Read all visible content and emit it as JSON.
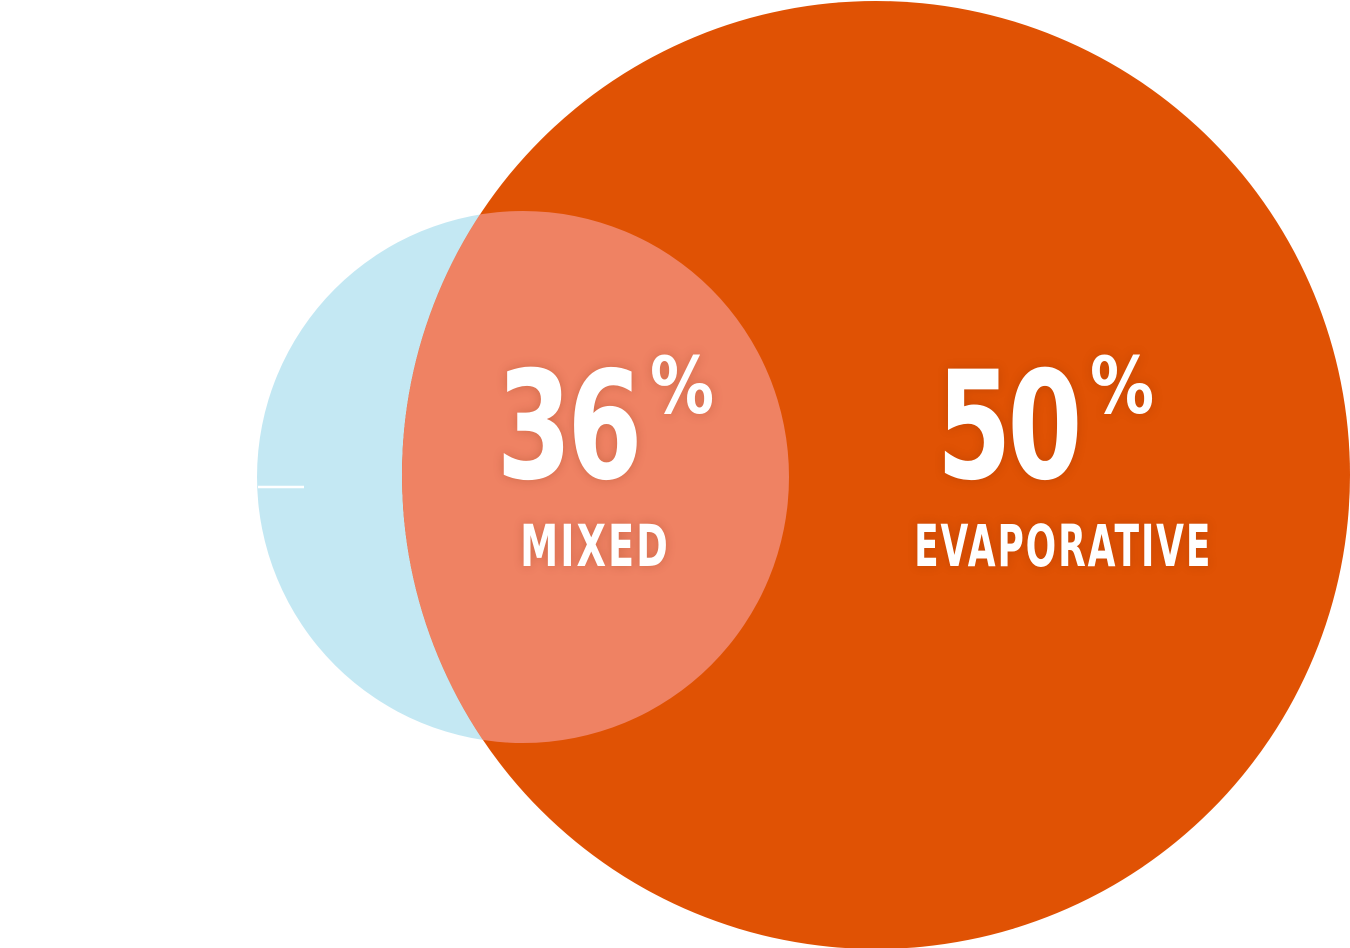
{
  "colors": {
    "background": "#ffffff",
    "small_circle": "#c4e8f3",
    "large_circle": "#e05204",
    "overlap": "#ef8263",
    "text": "#ffffff"
  },
  "stats": {
    "mixed": {
      "value": "36",
      "unit": "%",
      "label": "MIXED"
    },
    "evaporative": {
      "value": "50",
      "unit": "%",
      "label": "EVAPORATIVE"
    }
  }
}
